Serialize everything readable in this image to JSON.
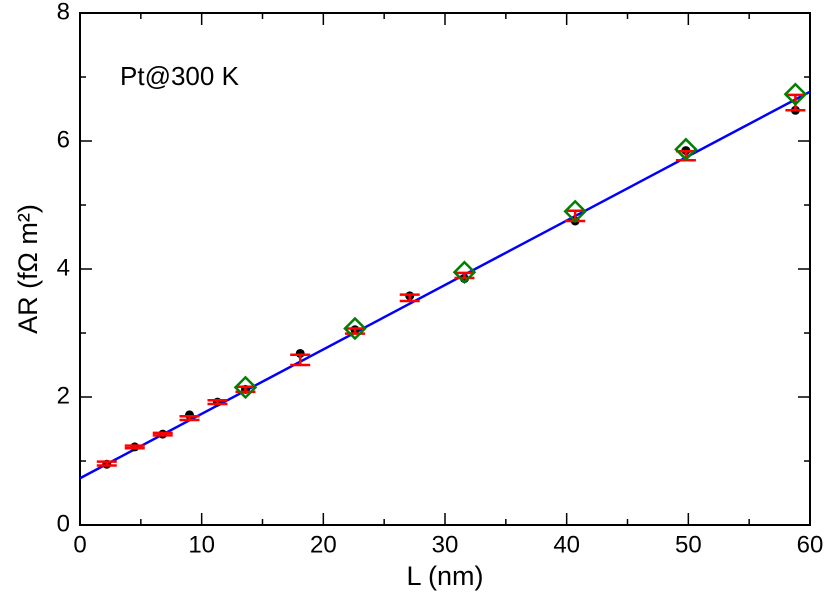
{
  "chart_data": {
    "type": "scatter",
    "annotation": "Pt@300 K",
    "x_label": "L (nm)",
    "y_label": "AR (fΩ m²)",
    "xlim": [
      0,
      60
    ],
    "ylim": [
      0,
      8
    ],
    "xticks": [
      0,
      10,
      20,
      30,
      40,
      50,
      60
    ],
    "yticks": [
      0,
      2,
      4,
      6,
      8
    ],
    "xminorticks": [
      5,
      15,
      25,
      35,
      45,
      55
    ],
    "yminorticks": [
      1,
      3,
      5,
      7
    ],
    "series": [
      {
        "kind": "dots",
        "color": "#000000",
        "x": [
          2.2,
          4.5,
          6.8,
          9.0,
          11.3,
          13.6,
          18.1,
          22.6,
          27.1,
          31.6,
          40.7,
          49.8,
          58.8
        ],
        "values": [
          0.95,
          1.22,
          1.42,
          1.72,
          1.92,
          2.12,
          2.68,
          3.05,
          3.58,
          3.85,
          4.75,
          5.85,
          6.48
        ]
      },
      {
        "kind": "errorbar",
        "color": "#ff0000",
        "x": [
          2.2,
          4.5,
          6.8,
          9.0,
          11.3,
          13.6,
          18.1,
          22.6,
          27.1,
          31.6,
          40.7,
          49.8,
          58.8
        ],
        "values": [
          0.96,
          1.22,
          1.42,
          1.67,
          1.92,
          2.12,
          2.58,
          3.03,
          3.55,
          3.9,
          4.83,
          5.77,
          6.6
        ],
        "errors": [
          0.03,
          0.02,
          0.02,
          0.03,
          0.03,
          0.04,
          0.08,
          0.04,
          0.05,
          0.04,
          0.08,
          0.07,
          0.12
        ]
      },
      {
        "kind": "diamond",
        "color": "#008000",
        "x": [
          13.6,
          22.6,
          31.6,
          40.7,
          49.8,
          58.8
        ],
        "values": [
          2.15,
          3.07,
          3.95,
          4.9,
          5.87,
          6.73
        ]
      },
      {
        "kind": "line",
        "color": "#0000ff",
        "x": [
          0,
          60
        ],
        "values": [
          0.73,
          6.77
        ]
      }
    ]
  }
}
